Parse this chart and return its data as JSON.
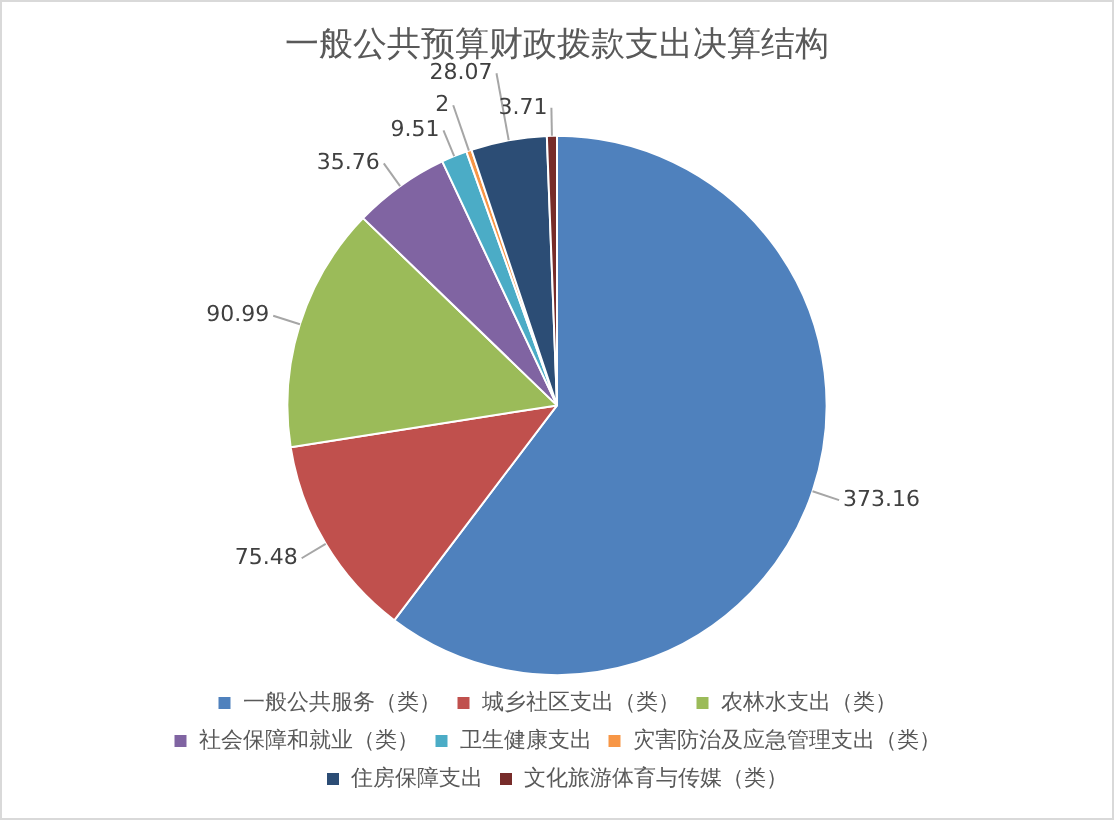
{
  "chart_data": {
    "type": "pie",
    "title": "一般公共预算财政拨款支出决算结构",
    "categories": [
      "一般公共服务（类）",
      "城乡社区支出（类）",
      "农林水支出（类）",
      "社会保障和就业（类）",
      "卫生健康支出",
      "灾害防治及应急管理支出（类）",
      "住房保障支出",
      "文化旅游体育与传媒（类）"
    ],
    "values": [
      373.16,
      75.48,
      90.99,
      35.76,
      9.51,
      2,
      28.07,
      3.71
    ],
    "colors": [
      "#4f81bd",
      "#c0504d",
      "#9bbb59",
      "#8064a2",
      "#4bacc6",
      "#f79646",
      "#2c4d75",
      "#772c2a"
    ],
    "data_labels": true,
    "legend": "bottom"
  }
}
